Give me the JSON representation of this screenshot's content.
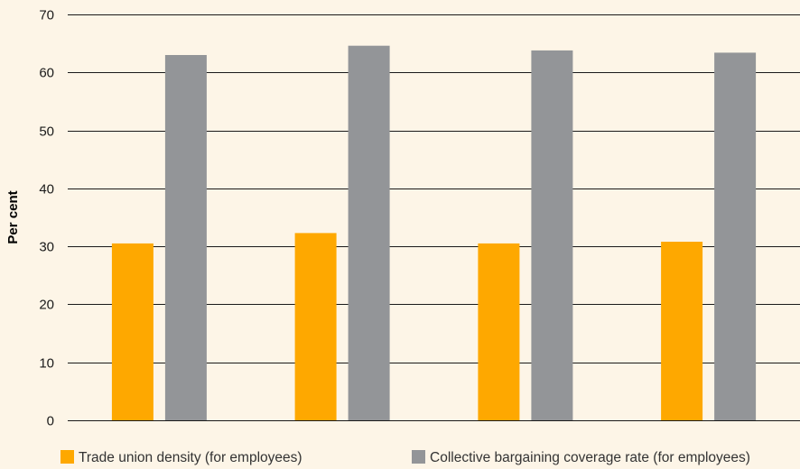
{
  "chart_data": {
    "type": "bar",
    "categories": [
      "",
      "",
      "",
      ""
    ],
    "series": [
      {
        "name": "Trade union density (for employees)",
        "values": [
          30.5,
          32.3,
          30.5,
          30.8
        ],
        "color": "#fea800"
      },
      {
        "name": "Collective bargaining coverage rate (for employees)",
        "values": [
          63.0,
          64.6,
          63.8,
          63.4
        ],
        "color": "#939598"
      }
    ],
    "title": "",
    "xlabel": "",
    "ylabel": "Per cent",
    "ylim": [
      0,
      70
    ],
    "yticks": [
      0,
      10,
      20,
      30,
      40,
      50,
      60,
      70
    ],
    "grid": true,
    "legend_position": "bottom"
  },
  "colors": {
    "background": "#fdf5e7",
    "gridline": "#1a1a1a"
  }
}
